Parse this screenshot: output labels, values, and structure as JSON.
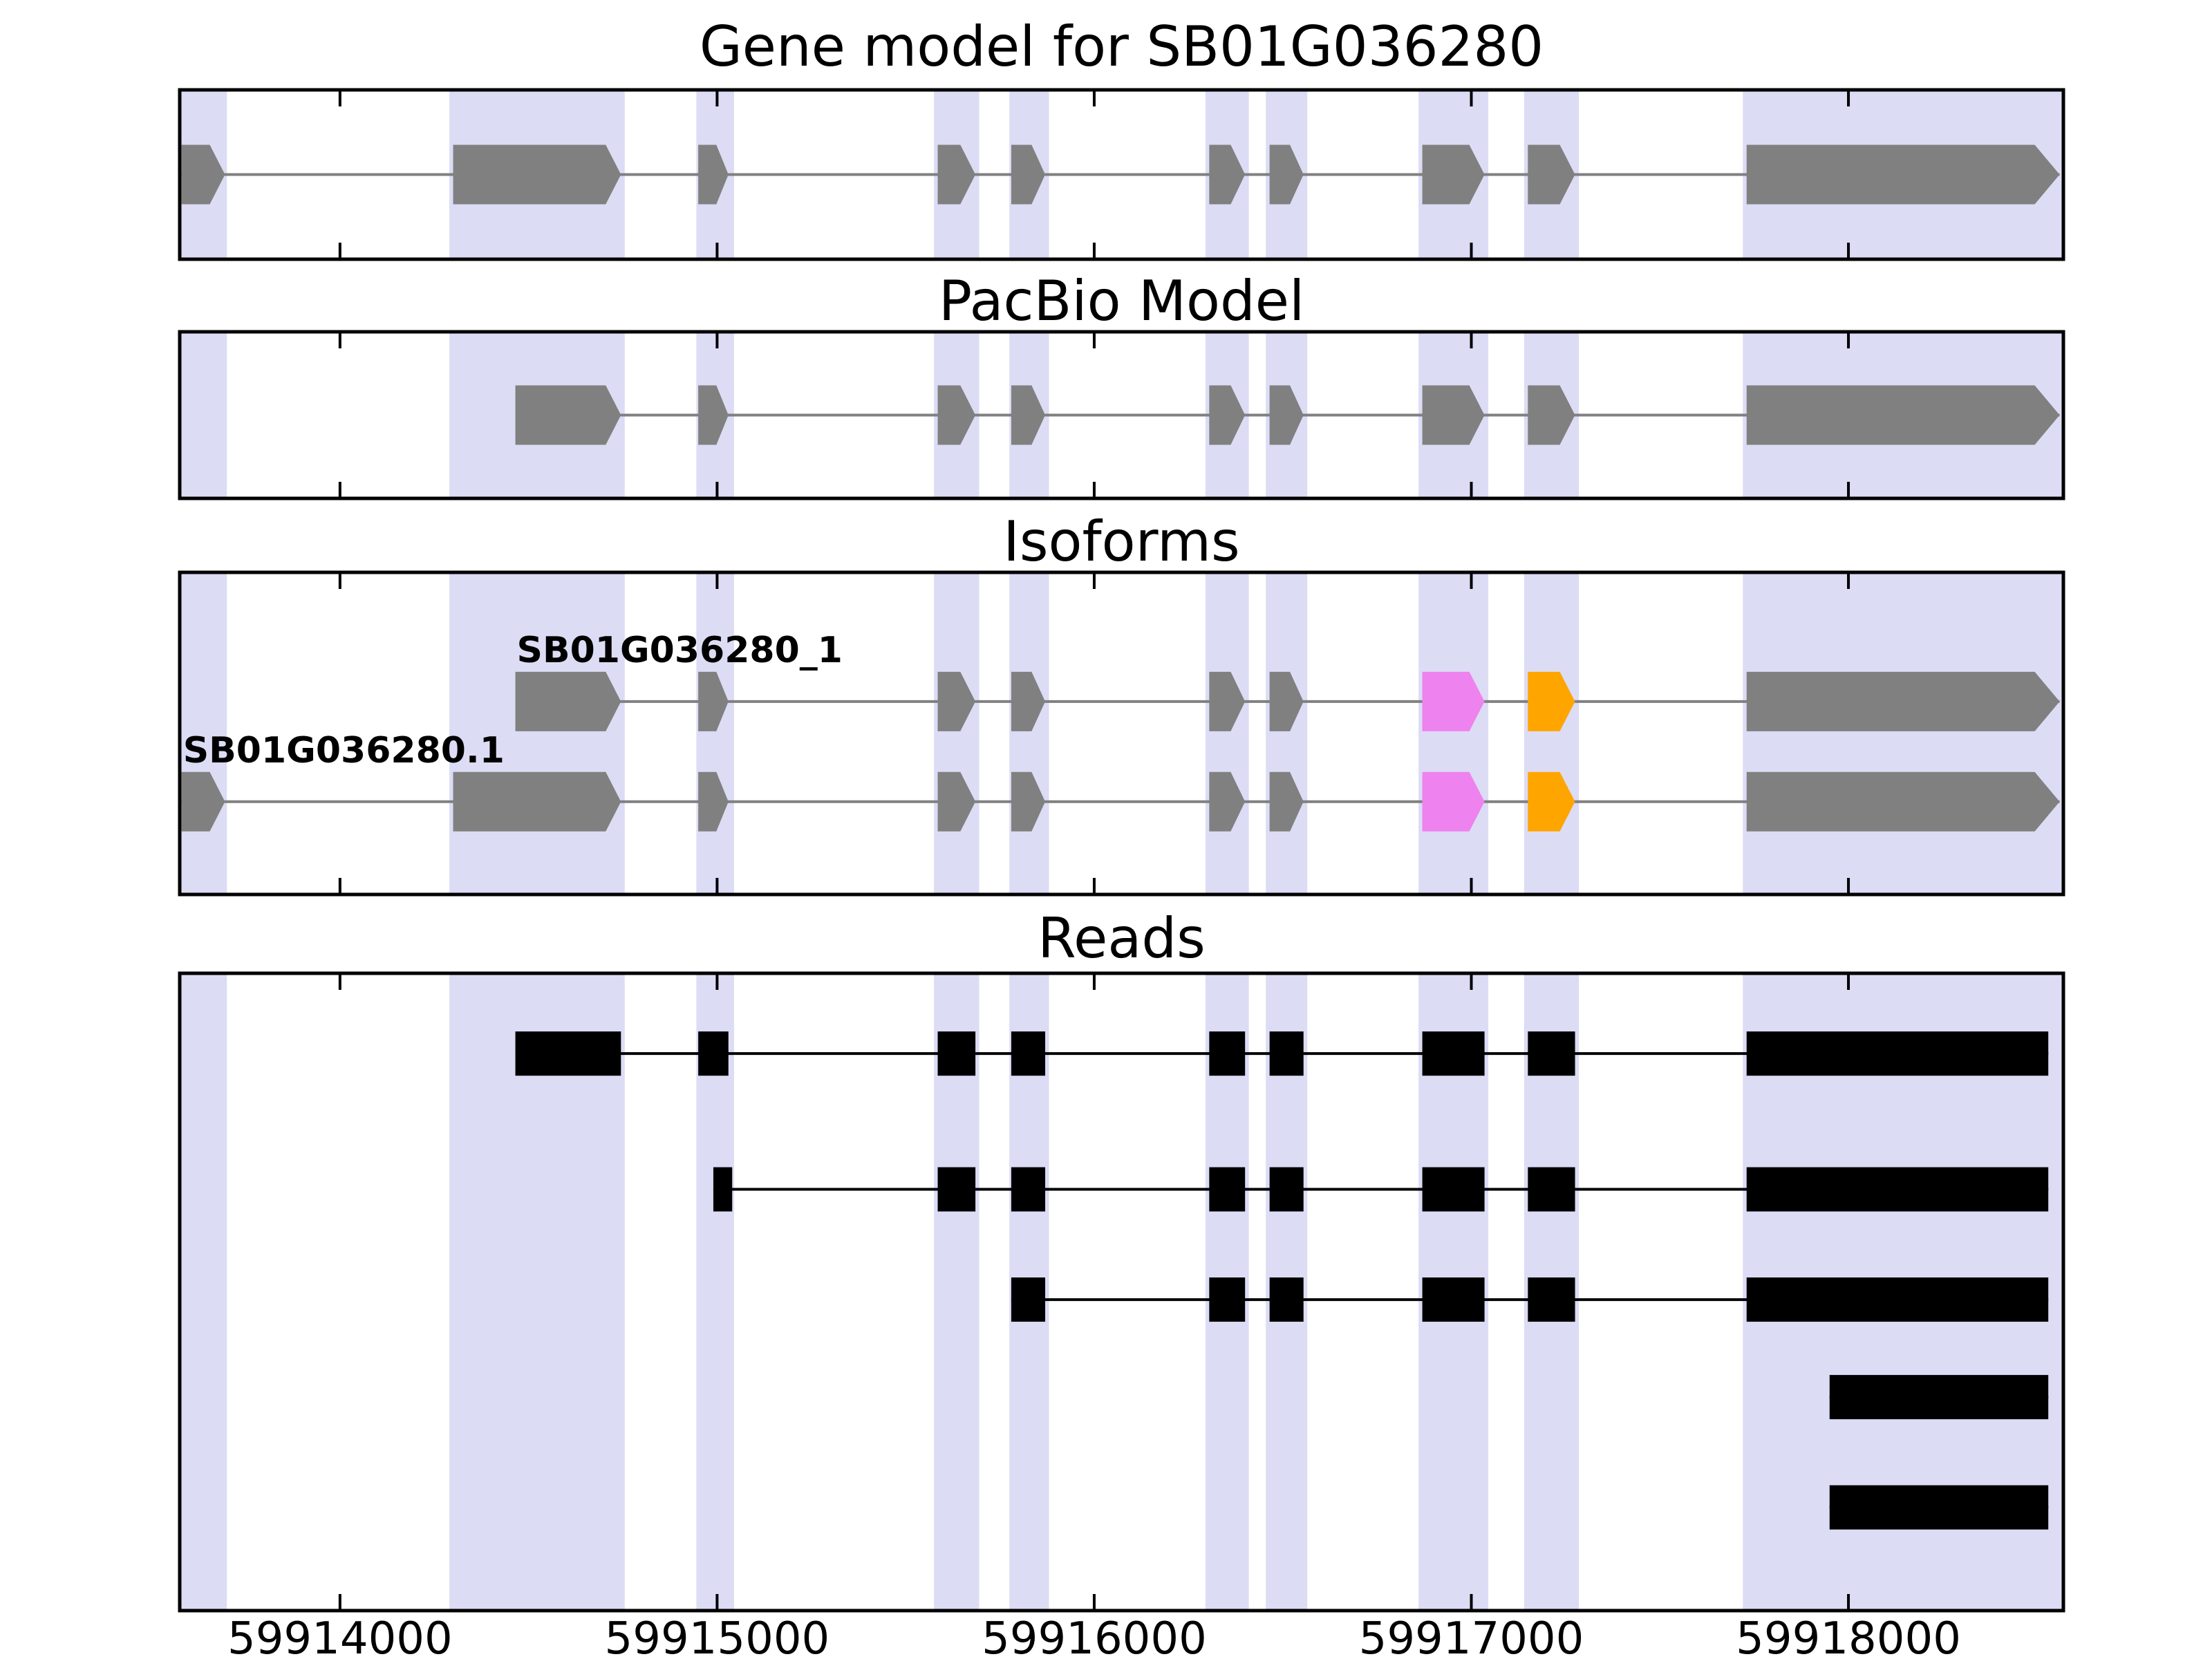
{
  "chart_data": {
    "type": "genome-browser-tracks",
    "title": "Gene model for SB01G036280",
    "x_range": [
      59913575,
      59918570
    ],
    "x_ticks": [
      59914000,
      59915000,
      59916000,
      59917000,
      59918000
    ],
    "colors": {
      "gray": "#808080",
      "magenta": "#ee82ee",
      "orange": "#ffa500",
      "black": "#000000",
      "band": "#dcdcf5",
      "axis": "#000000"
    },
    "highlight_regions": [
      [
        59913580,
        59913700
      ],
      [
        59914290,
        59914755
      ],
      [
        59914945,
        59915045
      ],
      [
        59915575,
        59915695
      ],
      [
        59915775,
        59915880
      ],
      [
        59916295,
        59916410
      ],
      [
        59916455,
        59916565
      ],
      [
        59916860,
        59917045
      ],
      [
        59917140,
        59917285
      ],
      [
        59917720,
        59918570
      ]
    ],
    "panels": [
      {
        "id": "gene_model",
        "title": "Gene model for SB01G036280",
        "rows": [
          {
            "name": "SB01G036280",
            "label": "",
            "style": "arrow",
            "color": "gray",
            "exons": [
              {
                "s": 59913580,
                "e": 59913695
              },
              {
                "s": 59914300,
                "e": 59914745
              },
              {
                "s": 59914950,
                "e": 59915030
              },
              {
                "s": 59915585,
                "e": 59915685
              },
              {
                "s": 59915780,
                "e": 59915870
              },
              {
                "s": 59916305,
                "e": 59916400
              },
              {
                "s": 59916465,
                "e": 59916555
              },
              {
                "s": 59916870,
                "e": 59917035
              },
              {
                "s": 59917150,
                "e": 59917275
              },
              {
                "s": 59917730,
                "e": 59918560
              }
            ]
          }
        ]
      },
      {
        "id": "pacbio",
        "title": "PacBio Model",
        "rows": [
          {
            "name": "PacBio model",
            "label": "",
            "style": "arrow",
            "color": "gray",
            "exons": [
              {
                "s": 59914465,
                "e": 59914745
              },
              {
                "s": 59914950,
                "e": 59915030
              },
              {
                "s": 59915585,
                "e": 59915685
              },
              {
                "s": 59915780,
                "e": 59915870
              },
              {
                "s": 59916305,
                "e": 59916400
              },
              {
                "s": 59916465,
                "e": 59916555
              },
              {
                "s": 59916870,
                "e": 59917035
              },
              {
                "s": 59917150,
                "e": 59917275
              },
              {
                "s": 59917730,
                "e": 59918560
              }
            ]
          }
        ]
      },
      {
        "id": "isoforms",
        "title": "Isoforms",
        "rows": [
          {
            "name": "SB01G036280_1",
            "label": "SB01G036280_1",
            "style": "arrow",
            "color": "gray",
            "exons": [
              {
                "s": 59914465,
                "e": 59914745
              },
              {
                "s": 59914950,
                "e": 59915030
              },
              {
                "s": 59915585,
                "e": 59915685
              },
              {
                "s": 59915780,
                "e": 59915870
              },
              {
                "s": 59916305,
                "e": 59916400
              },
              {
                "s": 59916465,
                "e": 59916555
              },
              {
                "s": 59916870,
                "e": 59917035,
                "color": "magenta"
              },
              {
                "s": 59917150,
                "e": 59917275,
                "color": "orange"
              },
              {
                "s": 59917730,
                "e": 59918560
              }
            ]
          },
          {
            "name": "SB01G036280.1",
            "label": "SB01G036280.1",
            "style": "arrow",
            "color": "gray",
            "exons": [
              {
                "s": 59913580,
                "e": 59913695
              },
              {
                "s": 59914300,
                "e": 59914745
              },
              {
                "s": 59914950,
                "e": 59915030
              },
              {
                "s": 59915585,
                "e": 59915685
              },
              {
                "s": 59915780,
                "e": 59915870
              },
              {
                "s": 59916305,
                "e": 59916400
              },
              {
                "s": 59916465,
                "e": 59916555
              },
              {
                "s": 59916870,
                "e": 59917035,
                "color": "magenta"
              },
              {
                "s": 59917150,
                "e": 59917275,
                "color": "orange"
              },
              {
                "s": 59917730,
                "e": 59918560
              }
            ]
          }
        ]
      },
      {
        "id": "reads",
        "title": "Reads",
        "rows": [
          {
            "name": "read-1",
            "label": "",
            "style": "rect",
            "color": "black",
            "exons": [
              {
                "s": 59914465,
                "e": 59914745
              },
              {
                "s": 59914950,
                "e": 59915030
              },
              {
                "s": 59915585,
                "e": 59915685
              },
              {
                "s": 59915780,
                "e": 59915870
              },
              {
                "s": 59916305,
                "e": 59916400
              },
              {
                "s": 59916465,
                "e": 59916555
              },
              {
                "s": 59916870,
                "e": 59917035
              },
              {
                "s": 59917150,
                "e": 59917275
              },
              {
                "s": 59917730,
                "e": 59918530
              }
            ]
          },
          {
            "name": "read-2",
            "label": "",
            "style": "rect",
            "color": "black",
            "exons": [
              {
                "s": 59914990,
                "e": 59915040
              },
              {
                "s": 59915585,
                "e": 59915685
              },
              {
                "s": 59915780,
                "e": 59915870
              },
              {
                "s": 59916305,
                "e": 59916400
              },
              {
                "s": 59916465,
                "e": 59916555
              },
              {
                "s": 59916870,
                "e": 59917035
              },
              {
                "s": 59917150,
                "e": 59917275
              },
              {
                "s": 59917730,
                "e": 59918530
              }
            ]
          },
          {
            "name": "read-3",
            "label": "",
            "style": "rect",
            "color": "black",
            "exons": [
              {
                "s": 59915780,
                "e": 59915870
              },
              {
                "s": 59916305,
                "e": 59916400
              },
              {
                "s": 59916465,
                "e": 59916555
              },
              {
                "s": 59916870,
                "e": 59917035
              },
              {
                "s": 59917150,
                "e": 59917275
              },
              {
                "s": 59917730,
                "e": 59918530
              }
            ]
          },
          {
            "name": "read-4",
            "label": "",
            "style": "rect",
            "color": "black",
            "exons": [
              {
                "s": 59917950,
                "e": 59918530
              }
            ]
          },
          {
            "name": "read-5",
            "label": "",
            "style": "rect",
            "color": "black",
            "exons": [
              {
                "s": 59917950,
                "e": 59918530
              }
            ]
          }
        ]
      }
    ]
  }
}
